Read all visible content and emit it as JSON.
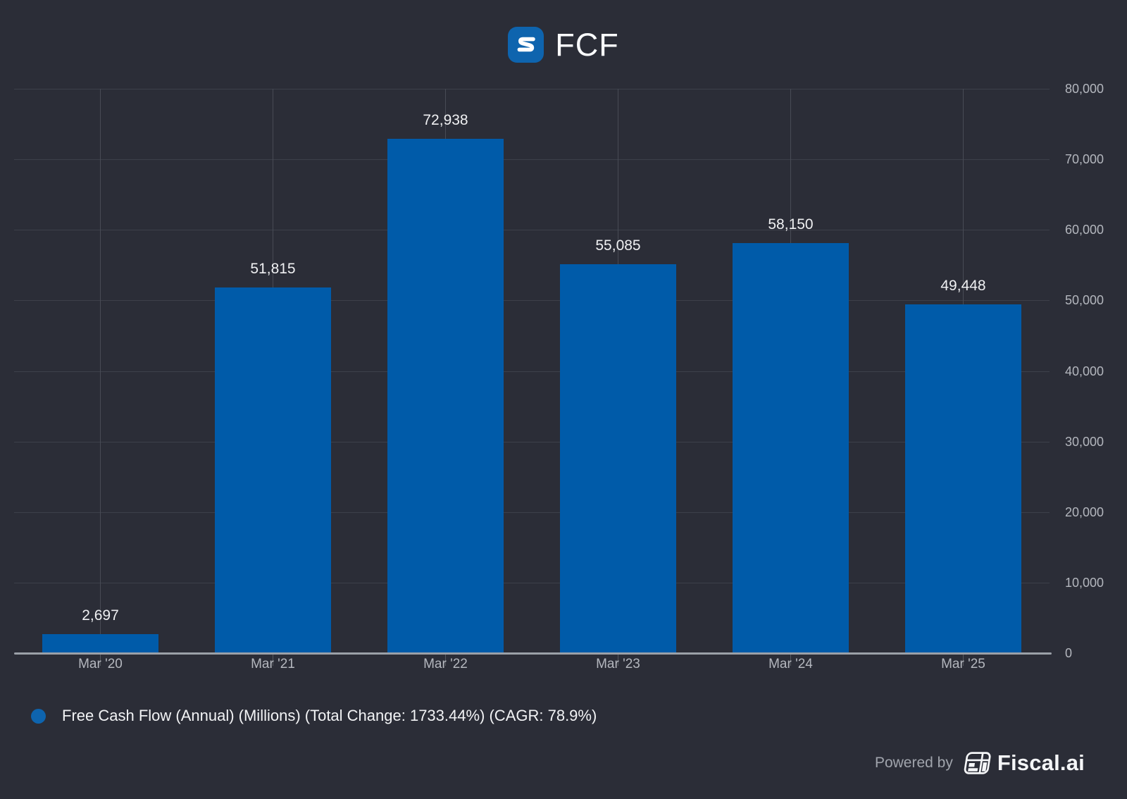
{
  "header": {
    "title": "FCF",
    "logo": "stylized-s-logo"
  },
  "colors": {
    "background": "#2B2D37",
    "bar": "#005BA9",
    "accent_blue": "#0E64AE",
    "grid_horizontal": "#3D404A",
    "grid_vertical": "#484B55",
    "axis_line": "#9BA0A8",
    "value_label_text": "#EFF0F2",
    "axis_label_text": "#B4B7BE",
    "legend_text": "#F2F3F5",
    "footer_muted_text": "#A0A4AC",
    "brand_text": "#F5F6F8"
  },
  "chart_data": {
    "type": "bar",
    "title": "FCF",
    "categories": [
      "Mar '20",
      "Mar '21",
      "Mar '22",
      "Mar '23",
      "Mar '24",
      "Mar '25"
    ],
    "values": [
      2697,
      51815,
      72938,
      55085,
      58150,
      49448
    ],
    "value_labels": [
      "2,697",
      "51,815",
      "72,938",
      "55,085",
      "58,150",
      "49,448"
    ],
    "series_name": "Free Cash Flow (Annual) (Millions)",
    "xlabel": "",
    "ylabel": "",
    "ylim": [
      0,
      80000
    ],
    "ytick_step": 10000,
    "ytick_labels": [
      "0",
      "10,000",
      "20,000",
      "30,000",
      "40,000",
      "50,000",
      "60,000",
      "70,000",
      "80,000"
    ],
    "grid": true,
    "y_axis_side": "right",
    "legend_position": "bottom-left",
    "annotations": {
      "total_change_pct": "1733.44%",
      "cagr_pct": "78.9%"
    }
  },
  "legend": {
    "label": "Free Cash Flow (Annual) (Millions) (Total Change: 1733.44%) (CAGR: 78.9%)"
  },
  "footer": {
    "powered_by": "Powered by",
    "brand": "Fiscal.ai"
  }
}
